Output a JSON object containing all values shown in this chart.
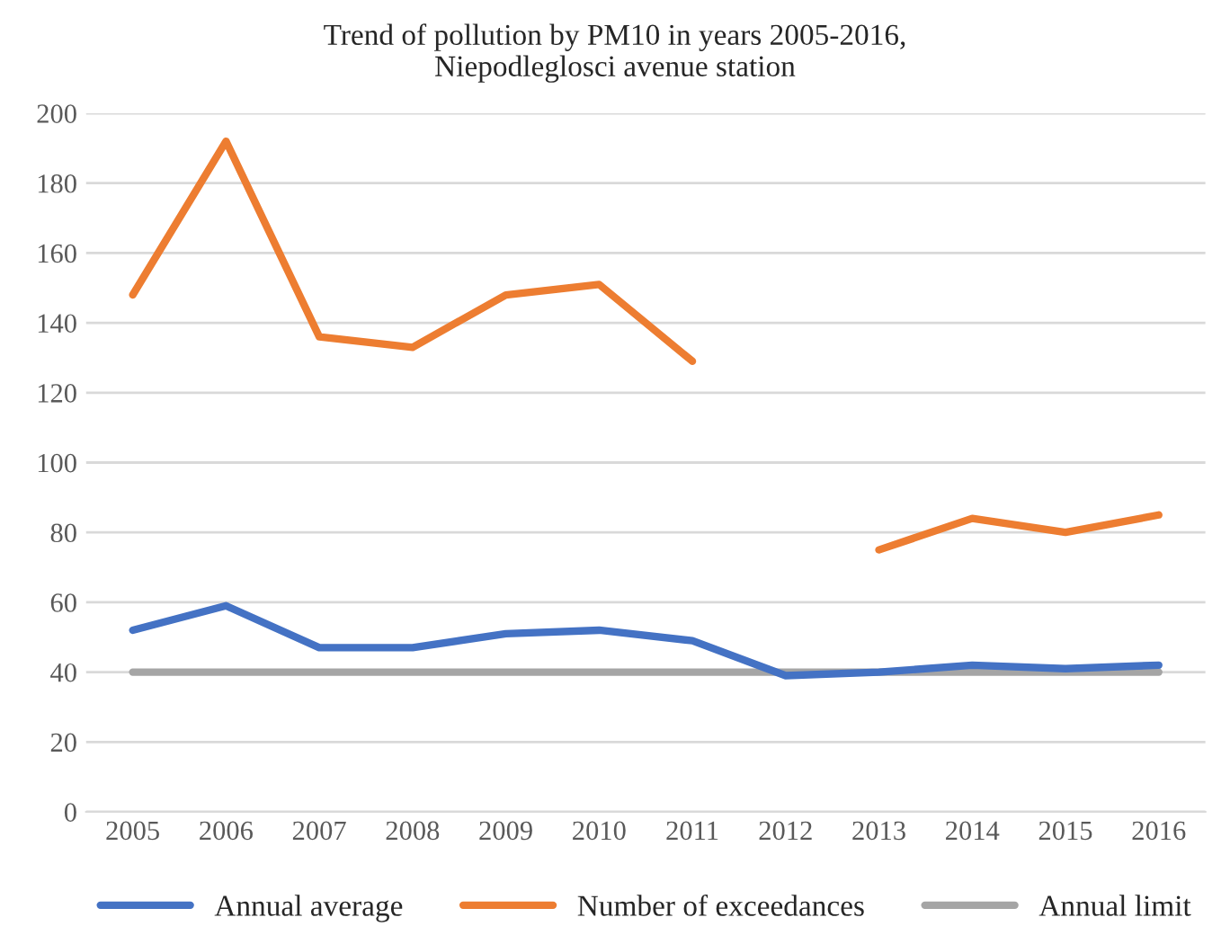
{
  "chart_data": {
    "type": "line",
    "title": "Trend of pollution by PM10 in years 2005-2016,\nNiepodleglosci avenue station",
    "categories": [
      "2005",
      "2006",
      "2007",
      "2008",
      "2009",
      "2010",
      "2011",
      "2012",
      "2013",
      "2014",
      "2015",
      "2016"
    ],
    "series": [
      {
        "name": "Annual average",
        "color": "#4472c4",
        "values": [
          52,
          59,
          47,
          47,
          51,
          52,
          49,
          39,
          40,
          42,
          41,
          42
        ]
      },
      {
        "name": "Number of exceedances",
        "color": "#ed7d31",
        "values": [
          148,
          192,
          136,
          133,
          148,
          151,
          129,
          null,
          75,
          84,
          80,
          85
        ]
      },
      {
        "name": "Annual limit",
        "color": "#a5a5a5",
        "values": [
          40,
          40,
          40,
          40,
          40,
          40,
          40,
          40,
          40,
          40,
          40,
          40
        ]
      }
    ],
    "ylim": [
      0,
      200
    ],
    "yticks": [
      0,
      20,
      40,
      60,
      80,
      100,
      120,
      140,
      160,
      180,
      200
    ],
    "grid": "y",
    "legend": "bottom",
    "marker": "none",
    "line_style": "solid"
  }
}
